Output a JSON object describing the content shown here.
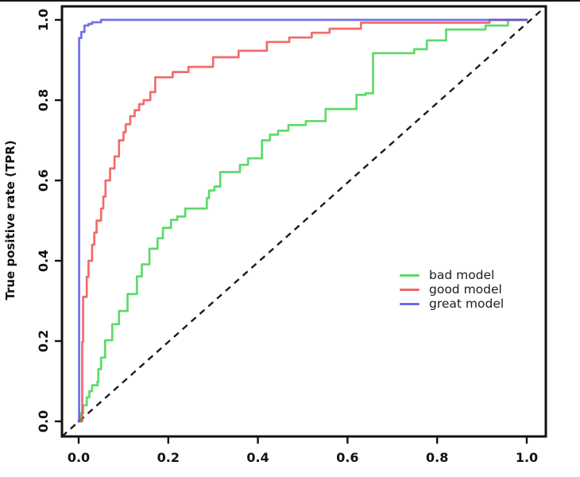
{
  "window": {
    "top_border_color": "#161616"
  },
  "chart_data": {
    "type": "line",
    "subtype": "roc-step-curves",
    "title": "",
    "xlabel": "",
    "ylabel": "True positive rate (TPR)",
    "xlim": [
      0.0,
      1.0
    ],
    "ylim": [
      0.0,
      1.0
    ],
    "grid": false,
    "x_tick_values": [
      0.0,
      0.2,
      0.4,
      0.6,
      0.8,
      1.0
    ],
    "y_tick_values": [
      0.0,
      0.2,
      0.4,
      0.6,
      0.8,
      1.0
    ],
    "x_tick_labels": [
      "0.0",
      "0.2",
      "0.4",
      "0.6",
      "0.8",
      "1.0"
    ],
    "y_tick_labels": [
      "0.0",
      "0.2",
      "0.4",
      "0.6",
      "0.8",
      "1.0"
    ],
    "legend_position": "inside-right-middle",
    "reference_line": {
      "type": "diagonal",
      "style": "dashed",
      "color": "#1c1c1c",
      "from": [
        0,
        0
      ],
      "to": [
        1,
        1
      ]
    },
    "axis_color": "#111111",
    "series": [
      {
        "name": "bad model",
        "color": "#3bd24d",
        "step": true,
        "points": [
          [
            0,
            0
          ],
          [
            0.004,
            0.02
          ],
          [
            0.01,
            0.04
          ],
          [
            0.018,
            0.06
          ],
          [
            0.024,
            0.075
          ],
          [
            0.03,
            0.09
          ],
          [
            0.042,
            0.099
          ],
          [
            0.044,
            0.13
          ],
          [
            0.05,
            0.159
          ],
          [
            0.059,
            0.202
          ],
          [
            0.075,
            0.242
          ],
          [
            0.09,
            0.275
          ],
          [
            0.109,
            0.317
          ],
          [
            0.13,
            0.361
          ],
          [
            0.141,
            0.391
          ],
          [
            0.158,
            0.43
          ],
          [
            0.176,
            0.456
          ],
          [
            0.188,
            0.482
          ],
          [
            0.206,
            0.502
          ],
          [
            0.22,
            0.51
          ],
          [
            0.238,
            0.53
          ],
          [
            0.286,
            0.556
          ],
          [
            0.291,
            0.575
          ],
          [
            0.303,
            0.585
          ],
          [
            0.316,
            0.621
          ],
          [
            0.36,
            0.639
          ],
          [
            0.378,
            0.655
          ],
          [
            0.409,
            0.7
          ],
          [
            0.427,
            0.714
          ],
          [
            0.445,
            0.724
          ],
          [
            0.468,
            0.738
          ],
          [
            0.507,
            0.748
          ],
          [
            0.551,
            0.778
          ],
          [
            0.62,
            0.813
          ],
          [
            0.64,
            0.817
          ],
          [
            0.657,
            0.917
          ],
          [
            0.749,
            0.927
          ],
          [
            0.777,
            0.949
          ],
          [
            0.82,
            0.976
          ],
          [
            0.908,
            0.986
          ],
          [
            0.958,
            1.0
          ],
          [
            1.0,
            1.0
          ]
        ]
      },
      {
        "name": "good model",
        "color": "#ef4b4b",
        "step": true,
        "points": [
          [
            0,
            0
          ],
          [
            0.008,
            0.198
          ],
          [
            0.01,
            0.31
          ],
          [
            0.018,
            0.36
          ],
          [
            0.022,
            0.4
          ],
          [
            0.03,
            0.44
          ],
          [
            0.035,
            0.47
          ],
          [
            0.04,
            0.5
          ],
          [
            0.05,
            0.53
          ],
          [
            0.055,
            0.56
          ],
          [
            0.06,
            0.6
          ],
          [
            0.07,
            0.63
          ],
          [
            0.08,
            0.66
          ],
          [
            0.09,
            0.7
          ],
          [
            0.1,
            0.72
          ],
          [
            0.105,
            0.74
          ],
          [
            0.115,
            0.76
          ],
          [
            0.125,
            0.775
          ],
          [
            0.135,
            0.79
          ],
          [
            0.145,
            0.8
          ],
          [
            0.16,
            0.82
          ],
          [
            0.171,
            0.857
          ],
          [
            0.21,
            0.87
          ],
          [
            0.245,
            0.883
          ],
          [
            0.3,
            0.907
          ],
          [
            0.357,
            0.923
          ],
          [
            0.42,
            0.945
          ],
          [
            0.47,
            0.956
          ],
          [
            0.52,
            0.968
          ],
          [
            0.56,
            0.978
          ],
          [
            0.63,
            0.993
          ],
          [
            0.917,
            1.0
          ],
          [
            1.0,
            1.0
          ]
        ]
      },
      {
        "name": "great model",
        "color": "#5050e8",
        "step": true,
        "points": [
          [
            0,
            0
          ],
          [
            0.001,
            0.955
          ],
          [
            0.006,
            0.97
          ],
          [
            0.013,
            0.986
          ],
          [
            0.022,
            0.99
          ],
          [
            0.03,
            0.994
          ],
          [
            0.05,
            1.0
          ],
          [
            1.0,
            1.0
          ]
        ]
      }
    ]
  }
}
